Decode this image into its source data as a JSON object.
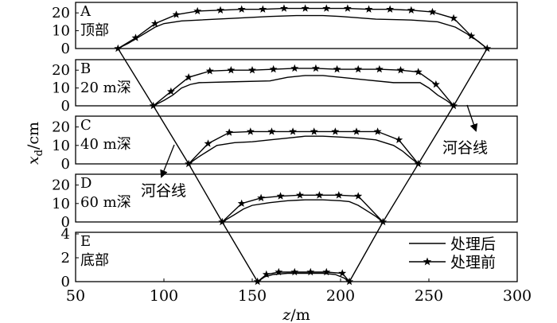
{
  "chart_data": {
    "type": "line",
    "xlabel": "z/m",
    "ylabel": "x_d/cm",
    "xlim": [
      50,
      300
    ],
    "x_ticks": [
      "50",
      "100",
      "150",
      "200",
      "250",
      "300"
    ],
    "grid": false,
    "legend": {
      "placement": "bottom-right",
      "entries": [
        {
          "key": "after",
          "label": "处理后",
          "marker": "none"
        },
        {
          "key": "before",
          "label": "处理前",
          "marker": "star"
        }
      ]
    },
    "annotations": [
      {
        "text": "河谷线",
        "near": "right valley line"
      },
      {
        "text": "河谷线",
        "near": "left valley line"
      }
    ],
    "valley_line": {
      "left": [
        [
          74,
          "A"
        ],
        [
          94,
          "B"
        ],
        [
          114,
          "C"
        ],
        [
          133,
          "D"
        ],
        [
          153,
          "E"
        ]
      ],
      "right": [
        [
          283,
          "A"
        ],
        [
          264,
          "B"
        ],
        [
          244,
          "C"
        ],
        [
          224,
          "D"
        ],
        [
          205,
          "E"
        ]
      ]
    },
    "panels": [
      {
        "id": "A",
        "letter": "A",
        "label": "顶部",
        "ylim": [
          0,
          25
        ],
        "y_ticks": [
          0,
          10,
          20
        ],
        "series": [
          {
            "key": "after",
            "x": [
              74,
              80,
              85,
              90,
              95,
              100,
              110,
              120,
              140,
              160,
              175,
              190,
              200,
              220,
              240,
              255,
              265,
              272,
              278,
              283
            ],
            "y": [
              0,
              3,
              6,
              9,
              12,
              14,
              15.5,
              16,
              17,
              18,
              18.5,
              18.5,
              18,
              16.5,
              16,
              15,
              12,
              8,
              4,
              0
            ]
          },
          {
            "key": "before",
            "x": [
              74,
              84,
              95,
              107,
              119,
              132,
              144,
              156,
              168,
              180,
              192,
              204,
              216,
              228,
              240,
              252,
              264,
              274,
              283
            ],
            "y": [
              0,
              6,
              14,
              19,
              21,
              21.5,
              22,
              22,
              22.5,
              22.5,
              22.5,
              22.5,
              22,
              22,
              21.5,
              20.5,
              17,
              7,
              0
            ]
          }
        ]
      },
      {
        "id": "B",
        "letter": "B",
        "label": "20 m深",
        "ylim": [
          0,
          25
        ],
        "y_ticks": [
          0,
          10,
          20
        ],
        "series": [
          {
            "key": "after",
            "x": [
              94,
              100,
              105,
              110,
              115,
              120,
              140,
              160,
              170,
              180,
              190,
              200,
              210,
              230,
              245,
              250,
              255,
              260,
              264
            ],
            "y": [
              0,
              3,
              6,
              10,
              12,
              13,
              13.5,
              14,
              16,
              17,
              17,
              16,
              15,
              13,
              13,
              10,
              6,
              3,
              0
            ]
          },
          {
            "key": "before",
            "x": [
              94,
              104,
              114,
              126,
              138,
              150,
              162,
              174,
              186,
              198,
              210,
              222,
              234,
              244,
              254,
              264
            ],
            "y": [
              0,
              8,
              16,
              19.5,
              20,
              20,
              20.5,
              21,
              21,
              20.5,
              20.5,
              20.5,
              20,
              19,
              12,
              0
            ]
          }
        ]
      },
      {
        "id": "C",
        "letter": "C",
        "label": "40 m深",
        "ylim": [
          0,
          25
        ],
        "y_ticks": [
          0,
          10,
          20
        ],
        "series": [
          {
            "key": "after",
            "x": [
              114,
              120,
              125,
              130,
              140,
              150,
              160,
              170,
              180,
              190,
              200,
              210,
              220,
              230,
              235,
              240,
              244
            ],
            "y": [
              0,
              4,
              7,
              10,
              11.5,
              12,
              13,
              14,
              15,
              15,
              14.5,
              14,
              13,
              10,
              7,
              3,
              0
            ]
          },
          {
            "key": "before",
            "x": [
              114,
              125,
              137,
              149,
              161,
              173,
              185,
              197,
              209,
              221,
              233,
              244
            ],
            "y": [
              0,
              11,
              17,
              17.5,
              17.5,
              17.5,
              17.5,
              17.5,
              17.5,
              17.5,
              13,
              0
            ]
          }
        ]
      },
      {
        "id": "D",
        "letter": "D",
        "label": "60 m深",
        "ylim": [
          0,
          25
        ],
        "y_ticks": [
          0,
          10,
          20
        ],
        "series": [
          {
            "key": "after",
            "x": [
              133,
              140,
              145,
              150,
              160,
              170,
              180,
              190,
              200,
              205,
              210,
              215,
              220,
              224
            ],
            "y": [
              0,
              4,
              7,
              9,
              10.5,
              11.5,
              12,
              12,
              11.5,
              11,
              9,
              6,
              3,
              0
            ]
          },
          {
            "key": "before",
            "x": [
              133,
              144,
              155,
              166,
              177,
              188,
              199,
              210,
              224
            ],
            "y": [
              0,
              10,
              13,
              14,
              14.5,
              14.5,
              14.5,
              14,
              0
            ]
          }
        ]
      },
      {
        "id": "E",
        "letter": "E",
        "label": "底部",
        "ylim": [
          0,
          4
        ],
        "y_ticks": [
          0,
          2,
          4
        ],
        "series": [
          {
            "key": "after",
            "x": [
              153,
              157,
              162,
              170,
              180,
              190,
              197,
              202,
              205
            ],
            "y": [
              0,
              0.4,
              0.6,
              0.7,
              0.7,
              0.7,
              0.6,
              0.3,
              0
            ]
          },
          {
            "key": "before",
            "x": [
              153,
              158,
              165,
              174,
              183,
              192,
              201,
              205
            ],
            "y": [
              0,
              0.6,
              0.8,
              0.8,
              0.8,
              0.8,
              0.7,
              0
            ]
          }
        ]
      }
    ]
  }
}
